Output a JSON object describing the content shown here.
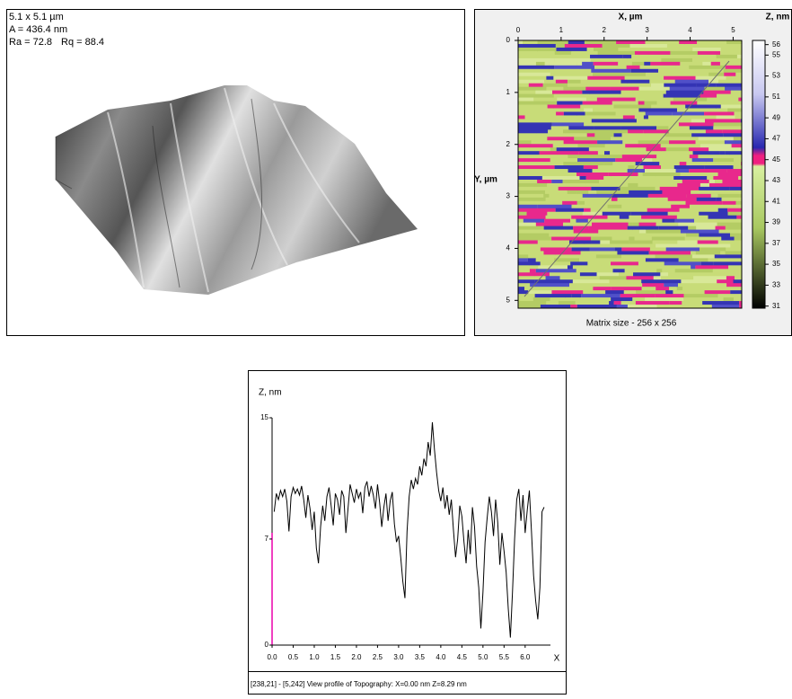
{
  "surface_panel": {
    "size": "5.1 x 5.1 µm",
    "amplitude": "A = 436.4 nm",
    "ra": "Ra = 72.8",
    "rq": "Rq = 88.4"
  },
  "map_panel": {
    "x_label": "X, µm",
    "y_label": "Y, µm",
    "z_label": "Z, nm",
    "caption": "Matrix size - 256 x 256",
    "xlim": [
      0,
      5.2
    ],
    "xticks": [
      0,
      1,
      2,
      3,
      4,
      5
    ],
    "ylim": [
      0,
      5.15
    ],
    "yticks": [
      0,
      1,
      2,
      3,
      4,
      5
    ],
    "zlim": [
      30.8,
      56.4
    ],
    "zticks": [
      56,
      55,
      53,
      51,
      49,
      47,
      45,
      43,
      41,
      39,
      37,
      35,
      33,
      31
    ]
  },
  "chart_data": {
    "type": "line",
    "y_label": "Z, nm",
    "x_label": "X",
    "color": "#000000",
    "status": "[238,21] - [5,242]  View profile of Topography: X=0.00 nm  Z=8.29 nm",
    "xlim": [
      0,
      6.6
    ],
    "ylim": [
      0,
      15
    ],
    "xticks": [
      {
        "value": 0,
        "label": "0.0"
      },
      {
        "value": 0.5,
        "label": "0.5"
      },
      {
        "value": 1,
        "label": "1.0"
      },
      {
        "value": 1.5,
        "label": "1.5"
      },
      {
        "value": 2,
        "label": "2.0"
      },
      {
        "value": 2.5,
        "label": "2.5"
      },
      {
        "value": 3,
        "label": "3.0"
      },
      {
        "value": 3.5,
        "label": "3.5"
      },
      {
        "value": 4,
        "label": "4.0"
      },
      {
        "value": 4.5,
        "label": "4.5"
      },
      {
        "value": 5,
        "label": "5.0"
      },
      {
        "value": 5.5,
        "label": "5.5"
      },
      {
        "value": 6,
        "label": "6.0"
      }
    ],
    "yticks": [
      0,
      7,
      15
    ],
    "x": [
      0.05,
      0.1,
      0.15,
      0.2,
      0.25,
      0.3,
      0.35,
      0.4,
      0.45,
      0.5,
      0.55,
      0.6,
      0.65,
      0.7,
      0.75,
      0.8,
      0.85,
      0.9,
      0.95,
      1.0,
      1.05,
      1.1,
      1.15,
      1.2,
      1.25,
      1.3,
      1.35,
      1.4,
      1.45,
      1.5,
      1.55,
      1.6,
      1.65,
      1.7,
      1.75,
      1.8,
      1.85,
      1.9,
      1.95,
      2.0,
      2.05,
      2.1,
      2.15,
      2.2,
      2.25,
      2.3,
      2.35,
      2.4,
      2.45,
      2.5,
      2.55,
      2.6,
      2.65,
      2.7,
      2.75,
      2.8,
      2.85,
      2.9,
      2.95,
      3.0,
      3.05,
      3.1,
      3.15,
      3.2,
      3.25,
      3.3,
      3.35,
      3.4,
      3.45,
      3.5,
      3.55,
      3.6,
      3.65,
      3.7,
      3.75,
      3.8,
      3.85,
      3.9,
      3.95,
      4.0,
      4.05,
      4.1,
      4.15,
      4.2,
      4.25,
      4.3,
      4.35,
      4.4,
      4.45,
      4.5,
      4.55,
      4.6,
      4.65,
      4.7,
      4.75,
      4.8,
      4.85,
      4.9,
      4.95,
      5.0,
      5.05,
      5.1,
      5.15,
      5.2,
      5.25,
      5.3,
      5.35,
      5.4,
      5.45,
      5.5,
      5.55,
      5.6,
      5.65,
      5.7,
      5.75,
      5.8,
      5.85,
      5.9,
      5.95,
      6.0,
      6.05,
      6.1,
      6.15,
      6.2,
      6.25,
      6.3,
      6.35,
      6.4,
      6.45
    ],
    "values": [
      8.8,
      10.0,
      9.6,
      10.2,
      9.8,
      10.3,
      9.5,
      7.5,
      9.8,
      10.4,
      10.0,
      10.3,
      9.9,
      10.5,
      9.6,
      8.4,
      9.9,
      9.0,
      7.6,
      8.8,
      6.4,
      5.4,
      7.8,
      9.2,
      8.2,
      9.8,
      10.4,
      9.2,
      7.9,
      10.0,
      9.6,
      8.6,
      10.2,
      9.8,
      7.4,
      9.0,
      10.6,
      10.0,
      9.4,
      10.3,
      9.7,
      10.1,
      8.7,
      10.4,
      10.8,
      9.8,
      10.5,
      9.9,
      9.0,
      10.6,
      9.4,
      7.8,
      9.1,
      10.0,
      8.2,
      9.5,
      10.1,
      8.0,
      6.8,
      7.2,
      5.8,
      4.2,
      3.1,
      7.5,
      9.8,
      10.9,
      10.3,
      11.0,
      10.6,
      11.8,
      11.2,
      12.3,
      11.8,
      13.4,
      12.5,
      14.7,
      12.9,
      11.4,
      10.2,
      9.5,
      10.4,
      9.0,
      9.9,
      8.6,
      9.6,
      7.6,
      5.8,
      7.0,
      9.2,
      8.5,
      6.8,
      5.4,
      7.6,
      6.0,
      9.1,
      7.8,
      5.2,
      3.8,
      1.1,
      3.5,
      6.8,
      8.4,
      9.8,
      8.8,
      7.2,
      9.6,
      8.1,
      5.3,
      7.4,
      6.2,
      4.8,
      2.4,
      0.5,
      3.5,
      7.0,
      9.6,
      10.3,
      8.2,
      9.9,
      7.4,
      8.9,
      10.2,
      7.5,
      4.6,
      2.9,
      1.7,
      3.8,
      8.8,
      9.1
    ]
  }
}
